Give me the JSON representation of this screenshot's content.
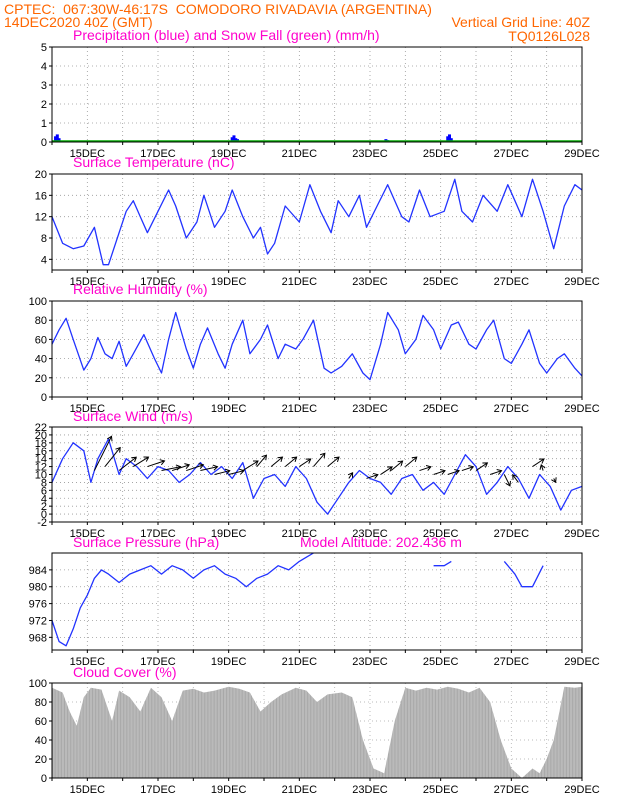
{
  "header": {
    "line1_left": "CPTEC:  067:30W-46:17S  COMODORO RIVADAVIA (ARGENTINA)",
    "line2_left": "14DEC2020 40Z (GMT)",
    "line2_right": "Vertical Grid Line: 40Z",
    "line3_right": "TQ0126L028"
  },
  "colors": {
    "header": "#ff6600",
    "panel_title": "#ff00cc",
    "precip": "#0000ff",
    "snow": "#00aa00",
    "line": "#2233ff",
    "cloud": "#a8a8a8"
  },
  "x_tick_labels": [
    "15DEC",
    "17DEC",
    "19DEC",
    "21DEC",
    "23DEC",
    "25DEC",
    "27DEC",
    "29DEC"
  ],
  "chart_data": [
    {
      "id": "precip",
      "type": "bar",
      "title": "Precipitation (blue) and Snow Fall (green) (mm/h)",
      "ylim": [
        0,
        5
      ],
      "y_ticks": [
        0,
        1,
        2,
        3,
        4,
        5
      ],
      "series": [
        {
          "name": "Precipitation",
          "x": [
            0.1,
            0.15,
            0.2,
            5.1,
            5.15,
            5.2,
            5.25,
            9.45,
            9.5,
            11.2,
            11.25,
            11.3
          ],
          "values": [
            0.3,
            0.4,
            0.2,
            0.25,
            0.35,
            0.2,
            0.15,
            0.15,
            0.1,
            0.3,
            0.4,
            0.2
          ]
        },
        {
          "name": "Snow Fall",
          "x": [],
          "values": []
        }
      ]
    },
    {
      "id": "temp",
      "type": "line",
      "title": "Surface Temperature (nC)",
      "ylim": [
        2,
        20
      ],
      "y_ticks": [
        4,
        8,
        12,
        16,
        20
      ],
      "x": [
        0,
        0.3,
        0.6,
        0.9,
        1.2,
        1.45,
        1.6,
        1.9,
        2.1,
        2.3,
        2.5,
        2.7,
        3.0,
        3.3,
        3.5,
        3.8,
        4.1,
        4.3,
        4.6,
        4.9,
        5.1,
        5.4,
        5.7,
        5.9,
        6.1,
        6.3,
        6.6,
        7.0,
        7.3,
        7.6,
        7.9,
        8.1,
        8.4,
        8.7,
        8.9,
        9.2,
        9.5,
        9.9,
        10.1,
        10.4,
        10.7,
        11.1,
        11.4,
        11.6,
        11.9,
        12.2,
        12.6,
        12.9,
        13.1,
        13.3,
        13.6,
        13.9,
        14.2,
        14.5,
        14.8,
        15.0
      ],
      "values": [
        12,
        7,
        6,
        6.5,
        10,
        3,
        3,
        9,
        13,
        15,
        12,
        9,
        13,
        17,
        14,
        8,
        11,
        16,
        10,
        13,
        17,
        12,
        8,
        10,
        5,
        7,
        14,
        11,
        18,
        13,
        9,
        15,
        12,
        16,
        10,
        14,
        18,
        12,
        11,
        17,
        12,
        13,
        19,
        13,
        11,
        16,
        13,
        18,
        15,
        12,
        19,
        13,
        6,
        14,
        18,
        17
      ]
    },
    {
      "id": "rh",
      "type": "line",
      "title": "Relative Humidity (%)",
      "ylim": [
        0,
        100
      ],
      "y_ticks": [
        0,
        20,
        40,
        60,
        80,
        100
      ],
      "x": [
        0,
        0.2,
        0.4,
        0.6,
        0.9,
        1.1,
        1.3,
        1.5,
        1.7,
        1.9,
        2.1,
        2.3,
        2.6,
        2.9,
        3.1,
        3.3,
        3.5,
        3.8,
        4.0,
        4.2,
        4.4,
        4.7,
        4.9,
        5.1,
        5.4,
        5.6,
        5.9,
        6.1,
        6.4,
        6.6,
        6.9,
        7.1,
        7.4,
        7.7,
        7.9,
        8.2,
        8.5,
        8.8,
        9.0,
        9.3,
        9.5,
        9.8,
        10.0,
        10.3,
        10.5,
        10.8,
        11.0,
        11.3,
        11.5,
        11.8,
        12.0,
        12.3,
        12.5,
        12.8,
        13.0,
        13.3,
        13.5,
        13.8,
        14.0,
        14.3,
        14.5,
        14.8,
        15.0
      ],
      "values": [
        55,
        70,
        82,
        60,
        28,
        40,
        62,
        45,
        40,
        58,
        32,
        45,
        65,
        40,
        25,
        60,
        88,
        50,
        30,
        55,
        72,
        45,
        30,
        55,
        80,
        45,
        60,
        75,
        40,
        55,
        50,
        60,
        80,
        30,
        25,
        32,
        45,
        25,
        18,
        55,
        88,
        70,
        45,
        60,
        85,
        70,
        50,
        75,
        78,
        55,
        50,
        70,
        80,
        40,
        35,
        55,
        70,
        35,
        25,
        40,
        45,
        30,
        22
      ]
    },
    {
      "id": "wind",
      "type": "line",
      "title": "Surface Wind (m/s)",
      "ylim": [
        -2,
        22
      ],
      "y_ticks": [
        -2,
        0,
        2,
        4,
        6,
        8,
        10,
        12,
        14,
        16,
        18,
        20,
        22
      ],
      "x": [
        0,
        0.3,
        0.6,
        0.9,
        1.1,
        1.3,
        1.6,
        1.9,
        2.1,
        2.4,
        2.7,
        3.0,
        3.3,
        3.6,
        3.9,
        4.2,
        4.5,
        4.8,
        5.1,
        5.4,
        5.7,
        6.0,
        6.3,
        6.6,
        6.9,
        7.2,
        7.5,
        7.8,
        8.1,
        8.4,
        8.7,
        9.0,
        9.3,
        9.6,
        9.9,
        10.2,
        10.5,
        10.8,
        11.1,
        11.4,
        11.7,
        12.0,
        12.3,
        12.6,
        12.9,
        13.2,
        13.5,
        13.8,
        14.1,
        14.4,
        14.7,
        15.0
      ],
      "values": [
        8,
        14,
        18,
        16,
        8,
        14,
        19,
        10,
        14,
        12,
        9,
        12,
        11,
        8,
        10,
        13,
        10,
        12,
        9,
        13,
        4,
        9,
        10,
        7,
        12,
        9,
        3,
        0,
        4,
        8,
        11,
        9,
        8,
        5,
        9,
        10,
        6,
        8,
        5,
        10,
        15,
        12,
        5,
        8,
        12,
        9,
        4,
        10,
        7,
        1,
        6,
        7
      ]
    },
    {
      "id": "pressure",
      "type": "line",
      "title": "Surface Pressure (hPa)",
      "annotation": "Model Altitude: 202.436 m",
      "ylim": [
        965,
        988
      ],
      "y_ticks": [
        968,
        972,
        976,
        980,
        984
      ],
      "x": [
        0,
        0.2,
        0.4,
        0.6,
        0.8,
        1.0,
        1.2,
        1.4,
        1.6,
        1.9,
        2.2,
        2.5,
        2.8,
        3.1,
        3.4,
        3.7,
        4.0,
        4.3,
        4.6,
        4.9,
        5.2,
        5.5,
        5.8,
        6.1,
        6.4,
        6.7,
        7.0,
        7.2,
        7.4,
        null,
        10.8,
        11.1,
        11.3,
        null,
        12.8,
        13.1,
        13.3,
        13.6,
        13.9
      ],
      "values": [
        972,
        967,
        966,
        970,
        975,
        978,
        982,
        984,
        983,
        981,
        983,
        984,
        985,
        983,
        985,
        984,
        982,
        984,
        985,
        983,
        982,
        980,
        982,
        983,
        985,
        984,
        986,
        987,
        989,
        null,
        985,
        985,
        986,
        null,
        986,
        983,
        980,
        980,
        985
      ]
    },
    {
      "id": "cloud",
      "type": "area",
      "title": "Cloud Cover (%)",
      "ylim": [
        0,
        100
      ],
      "y_ticks": [
        0,
        20,
        40,
        60,
        80,
        100
      ],
      "x": [
        0,
        0.3,
        0.5,
        0.7,
        0.9,
        1.1,
        1.4,
        1.7,
        1.9,
        2.2,
        2.5,
        2.8,
        3.1,
        3.4,
        3.7,
        4.0,
        4.3,
        4.6,
        5.0,
        5.3,
        5.6,
        5.9,
        6.2,
        6.5,
        6.9,
        7.2,
        7.5,
        7.8,
        8.2,
        8.5,
        8.8,
        9.1,
        9.4,
        9.7,
        10.0,
        10.3,
        10.6,
        10.9,
        11.2,
        11.5,
        11.8,
        12.1,
        12.4,
        12.7,
        13.0,
        13.3,
        13.6,
        13.8,
        14.0,
        14.2,
        14.5,
        14.8,
        15.0
      ],
      "values": [
        95,
        90,
        70,
        55,
        85,
        95,
        93,
        60,
        92,
        85,
        70,
        95,
        85,
        60,
        92,
        94,
        90,
        92,
        96,
        94,
        90,
        70,
        80,
        88,
        95,
        92,
        80,
        88,
        90,
        85,
        40,
        10,
        5,
        60,
        95,
        92,
        95,
        93,
        96,
        94,
        90,
        95,
        80,
        40,
        10,
        0,
        10,
        5,
        20,
        40,
        96,
        95,
        96
      ]
    }
  ],
  "wind_barbs": {
    "x": [
      1.2,
      1.5,
      1.9,
      2.3,
      2.7,
      3.1,
      3.4,
      3.8,
      4.2,
      4.6,
      5.0,
      5.4,
      5.8,
      6.2,
      6.6,
      7.0,
      7.4,
      7.8,
      8.4,
      8.9,
      9.3,
      9.6,
      10.0,
      10.4,
      10.8,
      11.2,
      11.6,
      12.0,
      12.4,
      12.8,
      13.2,
      13.6,
      13.9,
      14.2
    ],
    "y": [
      11,
      12,
      11,
      12,
      12,
      11,
      11,
      11,
      11,
      10,
      10,
      11,
      12,
      12,
      12,
      12,
      12,
      12,
      9,
      9,
      10,
      11,
      12,
      11,
      10,
      10,
      11,
      11,
      10,
      10,
      8,
      12,
      11,
      9
    ],
    "u": [
      0.45,
      0.4,
      0.45,
      0.4,
      0.45,
      0.5,
      0.45,
      0.45,
      0.45,
      0.4,
      0.4,
      0.4,
      0.25,
      0.3,
      0.3,
      0.3,
      0.3,
      0.3,
      0.1,
      0.3,
      0.3,
      0.3,
      0.3,
      0.3,
      0.3,
      0.3,
      0.3,
      0.3,
      0.3,
      0.15,
      -0.15,
      0.3,
      -0.05,
      0.05
    ],
    "v": [
      0.9,
      0.5,
      0.35,
      0.25,
      0.15,
      0.1,
      0.15,
      0.15,
      0.1,
      0.1,
      0.1,
      0.25,
      0.3,
      0.25,
      0.25,
      0.2,
      0.35,
      0.25,
      0.15,
      0.1,
      0.2,
      0.25,
      0.25,
      0.1,
      0.1,
      0.1,
      0.1,
      0.2,
      0.1,
      -0.3,
      0.2,
      0.2,
      0.15,
      -0.1
    ]
  }
}
